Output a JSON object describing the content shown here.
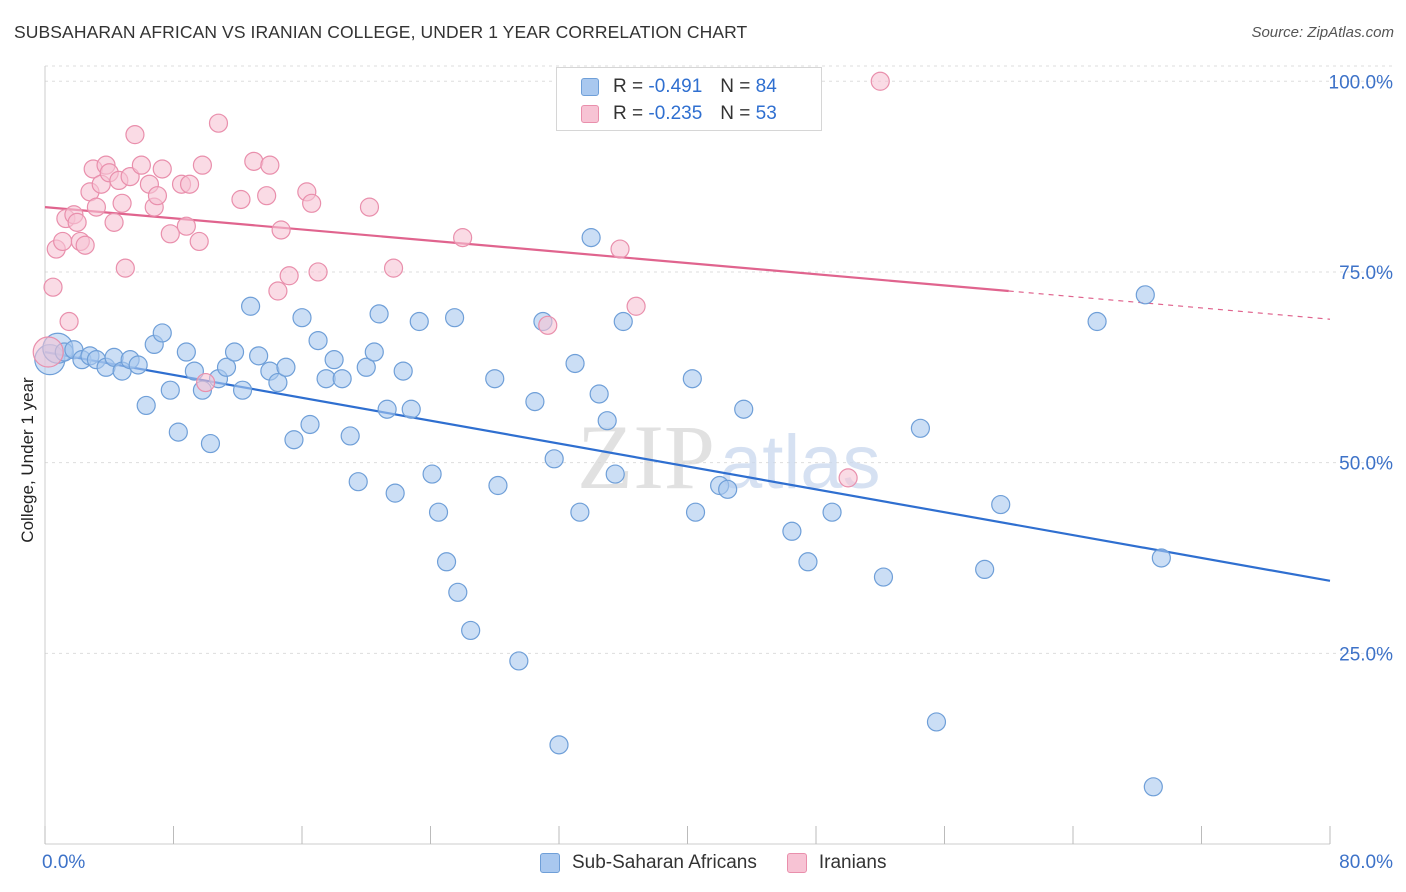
{
  "title": "SUBSAHARAN AFRICAN VS IRANIAN COLLEGE, UNDER 1 YEAR CORRELATION CHART",
  "source": "Source: ZipAtlas.com",
  "watermark": {
    "zip": "ZIP",
    "atlas": "atlas"
  },
  "colors": {
    "blue_fill": "#a9c8ef",
    "blue_stroke": "#6f9fd8",
    "blue_line": "#2f6fd0",
    "pink_fill": "#f7c3d4",
    "pink_stroke": "#e98fac",
    "pink_line": "#e0648e",
    "axis_text": "#3d72c8",
    "grid": "#dddddd"
  },
  "legend_top": [
    {
      "r_label": "R =",
      "r_value": "-0.491",
      "n_label": "N =",
      "n_value": "84"
    },
    {
      "r_label": "R =",
      "r_value": "-0.235",
      "n_label": "N =",
      "n_value": "53"
    }
  ],
  "legend_bottom": [
    "Sub-Saharan Africans",
    "Iranians"
  ],
  "chart_data": {
    "type": "scatter",
    "title": "SUBSAHARAN AFRICAN VS IRANIAN COLLEGE, UNDER 1 YEAR CORRELATION CHART",
    "xlabel": "",
    "ylabel": "College, Under 1 year",
    "xlim": [
      0,
      80
    ],
    "ylim": [
      0,
      102
    ],
    "x_tick_labels": [
      "0.0%",
      "80.0%"
    ],
    "y_tick_labels": [
      "100.0%",
      "75.0%",
      "50.0%",
      "25.0%"
    ],
    "y_ticks": [
      100,
      75,
      50,
      25
    ],
    "grid": "horizontal dashed",
    "legend_position": "top-center",
    "series": [
      {
        "name": "Sub-Saharan Africans",
        "R": -0.491,
        "N": 84,
        "trend": {
          "x0": 0,
          "y0": 64.5,
          "x1": 80,
          "y1": 34.5
        },
        "points": [
          [
            0.3,
            63.5,
            1
          ],
          [
            0.8,
            65.0,
            1
          ],
          [
            1.2,
            64.5,
            0
          ],
          [
            1.8,
            64.8,
            0
          ],
          [
            2.3,
            63.5,
            0
          ],
          [
            2.8,
            64.0,
            0
          ],
          [
            3.2,
            63.5,
            0
          ],
          [
            3.8,
            62.5,
            0
          ],
          [
            4.3,
            63.8,
            0
          ],
          [
            4.8,
            62.0,
            0
          ],
          [
            5.3,
            63.5,
            0
          ],
          [
            5.8,
            62.8,
            0
          ],
          [
            6.3,
            57.5,
            0
          ],
          [
            6.8,
            65.5,
            0
          ],
          [
            7.3,
            67.0,
            0
          ],
          [
            7.8,
            59.5,
            0
          ],
          [
            8.3,
            54.0,
            0
          ],
          [
            8.8,
            64.5,
            0
          ],
          [
            9.3,
            62.0,
            0
          ],
          [
            9.8,
            59.5,
            0
          ],
          [
            10.3,
            52.5,
            0
          ],
          [
            10.8,
            61.0,
            0
          ],
          [
            11.3,
            62.5,
            0
          ],
          [
            11.8,
            64.5,
            0
          ],
          [
            12.3,
            59.5,
            0
          ],
          [
            12.8,
            70.5,
            0
          ],
          [
            13.3,
            64.0,
            0
          ],
          [
            14.0,
            62.0,
            0
          ],
          [
            14.5,
            60.5,
            0
          ],
          [
            15.0,
            62.5,
            0
          ],
          [
            15.5,
            53.0,
            0
          ],
          [
            16.0,
            69.0,
            0
          ],
          [
            16.5,
            55.0,
            0
          ],
          [
            17.0,
            66.0,
            0
          ],
          [
            17.5,
            61.0,
            0
          ],
          [
            18.0,
            63.5,
            0
          ],
          [
            18.5,
            61.0,
            0
          ],
          [
            19.0,
            53.5,
            0
          ],
          [
            19.5,
            47.5,
            0
          ],
          [
            20.0,
            62.5,
            0
          ],
          [
            20.5,
            64.5,
            0
          ],
          [
            20.8,
            69.5,
            0
          ],
          [
            21.3,
            57.0,
            0
          ],
          [
            21.8,
            46.0,
            0
          ],
          [
            22.3,
            62.0,
            0
          ],
          [
            22.8,
            57.0,
            0
          ],
          [
            23.3,
            68.5,
            0
          ],
          [
            24.1,
            48.5,
            0
          ],
          [
            24.5,
            43.5,
            0
          ],
          [
            25.0,
            37.0,
            0
          ],
          [
            25.5,
            69.0,
            0
          ],
          [
            25.7,
            33.0,
            0
          ],
          [
            26.5,
            28.0,
            0
          ],
          [
            28.0,
            61.0,
            0
          ],
          [
            28.2,
            47.0,
            0
          ],
          [
            29.5,
            24.0,
            0
          ],
          [
            30.5,
            58.0,
            0
          ],
          [
            31.0,
            68.5,
            0
          ],
          [
            31.7,
            50.5,
            0
          ],
          [
            32.0,
            13.0,
            0
          ],
          [
            33.0,
            63.0,
            0
          ],
          [
            33.3,
            43.5,
            0
          ],
          [
            34.0,
            79.5,
            0
          ],
          [
            34.5,
            59.0,
            0
          ],
          [
            35.0,
            55.5,
            0
          ],
          [
            35.5,
            48.5,
            0
          ],
          [
            36.0,
            68.5,
            0
          ],
          [
            40.3,
            61.0,
            0
          ],
          [
            40.5,
            43.5,
            0
          ],
          [
            42.0,
            47.0,
            0
          ],
          [
            42.5,
            46.5,
            0
          ],
          [
            43.5,
            57.0,
            0
          ],
          [
            46.5,
            41.0,
            0
          ],
          [
            47.5,
            37.0,
            0
          ],
          [
            49.0,
            43.5,
            0
          ],
          [
            52.2,
            35.0,
            0
          ],
          [
            54.5,
            54.5,
            0
          ],
          [
            55.5,
            16.0,
            0
          ],
          [
            58.5,
            36.0,
            0
          ],
          [
            59.5,
            44.5,
            0
          ],
          [
            65.5,
            68.5,
            0
          ],
          [
            68.5,
            72.0,
            0
          ],
          [
            69.5,
            37.5,
            0
          ],
          [
            69.0,
            7.5,
            0
          ]
        ]
      },
      {
        "name": "Iranians",
        "R": -0.235,
        "N": 53,
        "trend": {
          "x0": 0,
          "y0": 83.5,
          "x1": 60,
          "y1": 72.5,
          "dash_to_x": 80,
          "dash_to_y": 68.8
        },
        "points": [
          [
            0.2,
            64.5,
            1
          ],
          [
            0.5,
            73.0,
            0
          ],
          [
            0.7,
            78.0,
            0
          ],
          [
            1.1,
            79.0,
            0
          ],
          [
            1.3,
            82.0,
            0
          ],
          [
            1.5,
            68.5,
            0
          ],
          [
            1.8,
            82.5,
            0
          ],
          [
            2.0,
            81.5,
            0
          ],
          [
            2.2,
            79.0,
            0
          ],
          [
            2.5,
            78.5,
            0
          ],
          [
            2.8,
            85.5,
            0
          ],
          [
            3.0,
            88.5,
            0
          ],
          [
            3.2,
            83.5,
            0
          ],
          [
            3.5,
            86.5,
            0
          ],
          [
            3.8,
            89.0,
            0
          ],
          [
            4.0,
            88.0,
            0
          ],
          [
            4.3,
            81.5,
            0
          ],
          [
            4.6,
            87.0,
            0
          ],
          [
            4.8,
            84.0,
            0
          ],
          [
            5.0,
            75.5,
            0
          ],
          [
            5.3,
            87.5,
            0
          ],
          [
            5.6,
            93.0,
            0
          ],
          [
            6.0,
            89.0,
            0
          ],
          [
            6.5,
            86.5,
            0
          ],
          [
            6.8,
            83.5,
            0
          ],
          [
            7.0,
            85.0,
            0
          ],
          [
            7.3,
            88.5,
            0
          ],
          [
            7.8,
            80.0,
            0
          ],
          [
            8.5,
            86.5,
            0
          ],
          [
            8.8,
            81.0,
            0
          ],
          [
            9.0,
            86.5,
            0
          ],
          [
            9.6,
            79.0,
            0
          ],
          [
            9.8,
            89.0,
            0
          ],
          [
            10.0,
            60.5,
            0
          ],
          [
            10.8,
            94.5,
            0
          ],
          [
            12.2,
            84.5,
            0
          ],
          [
            13.0,
            89.5,
            0
          ],
          [
            13.8,
            85.0,
            0
          ],
          [
            14.0,
            89.0,
            0
          ],
          [
            14.5,
            72.5,
            0
          ],
          [
            14.7,
            80.5,
            0
          ],
          [
            15.2,
            74.5,
            0
          ],
          [
            16.3,
            85.5,
            0
          ],
          [
            16.6,
            84.0,
            0
          ],
          [
            17.0,
            75.0,
            0
          ],
          [
            20.2,
            83.5,
            0
          ],
          [
            21.7,
            75.5,
            0
          ],
          [
            26.0,
            79.5,
            0
          ],
          [
            31.3,
            68.0,
            0
          ],
          [
            35.8,
            78.0,
            0
          ],
          [
            36.8,
            70.5,
            0
          ],
          [
            50.0,
            48.0,
            0
          ],
          [
            52.0,
            100.0,
            0
          ]
        ]
      }
    ]
  }
}
